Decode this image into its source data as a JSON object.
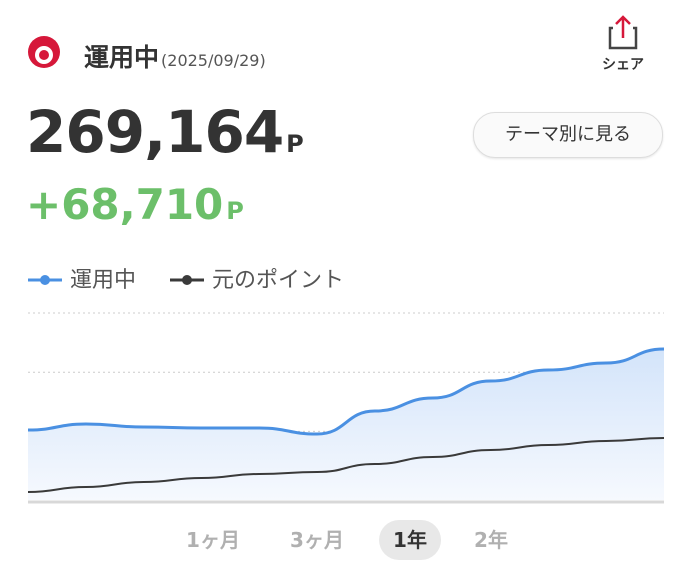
{
  "header": {
    "title": "運用中",
    "date": "(2025/09/29)",
    "share": "シェア"
  },
  "total": {
    "value": "269,164",
    "unit": "P"
  },
  "gain": {
    "value": "+68,710",
    "unit": "P"
  },
  "theme_button": "テーマ別に見る",
  "chart_data": {
    "type": "area",
    "series": [
      {
        "name": "運用中",
        "color": "#4a90e2",
        "values": [
          206640,
          211272,
          208956,
          208184,
          208184,
          203552,
          221308,
          231344,
          244468,
          252960,
          258364,
          269164
        ]
      },
      {
        "name": "元のポイント",
        "color": "#3a3a3a",
        "values": [
          158776,
          162636,
          166496,
          169584,
          172672,
          174216,
          180392,
          185796,
          191200,
          195060,
          198148,
          200454
        ]
      }
    ],
    "ylim": [
      152600,
      297000
    ],
    "grid": true
  },
  "period_tabs": [
    "1ヶ月",
    "3ヶ月",
    "1年",
    "2年"
  ]
}
